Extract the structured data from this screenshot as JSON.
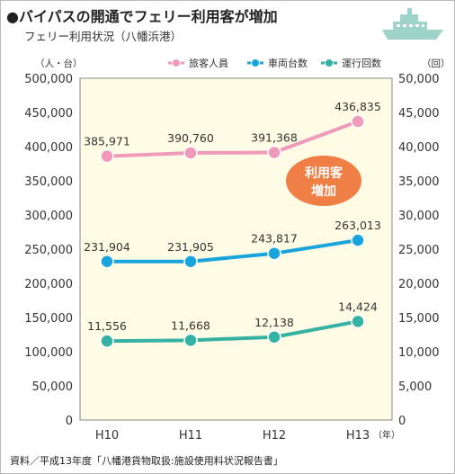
{
  "header": {
    "title": "●バイパスの開通でフェリー利用客が増加",
    "subtitle": "フェリー利用状況（八幡浜港）"
  },
  "source_note": "資料／平成13年度「八幡港貨物取扱:施設使用料状況報告書」",
  "callout": {
    "line1": "利用客",
    "line2": "増加"
  },
  "colors": {
    "background": "#fffce5",
    "passengers": "#f09abb",
    "vehicles": "#1aa4dc",
    "voyages": "#35b2a3",
    "callout": "#f07f45",
    "ship_icon": "#9ed3c9"
  },
  "chart_data": {
    "type": "line",
    "categories": [
      "H10",
      "H11",
      "H12",
      "H13"
    ],
    "x_unit": "（年）",
    "y_left": {
      "unit": "（人・台）",
      "ylim": [
        0,
        500000
      ],
      "ticks": [
        "0",
        "50,000",
        "100,000",
        "150,000",
        "200,000",
        "250,000",
        "300,000",
        "350,000",
        "400,000",
        "450,000",
        "500,000"
      ]
    },
    "y_right": {
      "unit": "（回）",
      "ylim": [
        0,
        50000
      ],
      "ticks": [
        "0",
        "5,000",
        "10,000",
        "15,000",
        "20,000",
        "25,000",
        "30,000",
        "35,000",
        "40,000",
        "45,000",
        "50,000"
      ]
    },
    "legend_position": "top-right",
    "series": [
      {
        "name": "旅客人員",
        "axis": "left",
        "color": "#f09abb",
        "values": [
          385971,
          390760,
          391368,
          436835
        ],
        "labels": [
          "385,971",
          "390,760",
          "391,368",
          "436,835"
        ]
      },
      {
        "name": "車両台数",
        "axis": "left",
        "color": "#1aa4dc",
        "values": [
          231904,
          231905,
          243817,
          263013
        ],
        "labels": [
          "231,904",
          "231,905",
          "243,817",
          "263,013"
        ]
      },
      {
        "name": "運行回数",
        "axis": "right",
        "color": "#35b2a3",
        "values": [
          11556,
          11668,
          12138,
          14424
        ],
        "labels": [
          "11,556",
          "11,668",
          "12,138",
          "14,424"
        ]
      }
    ],
    "grid": false
  }
}
